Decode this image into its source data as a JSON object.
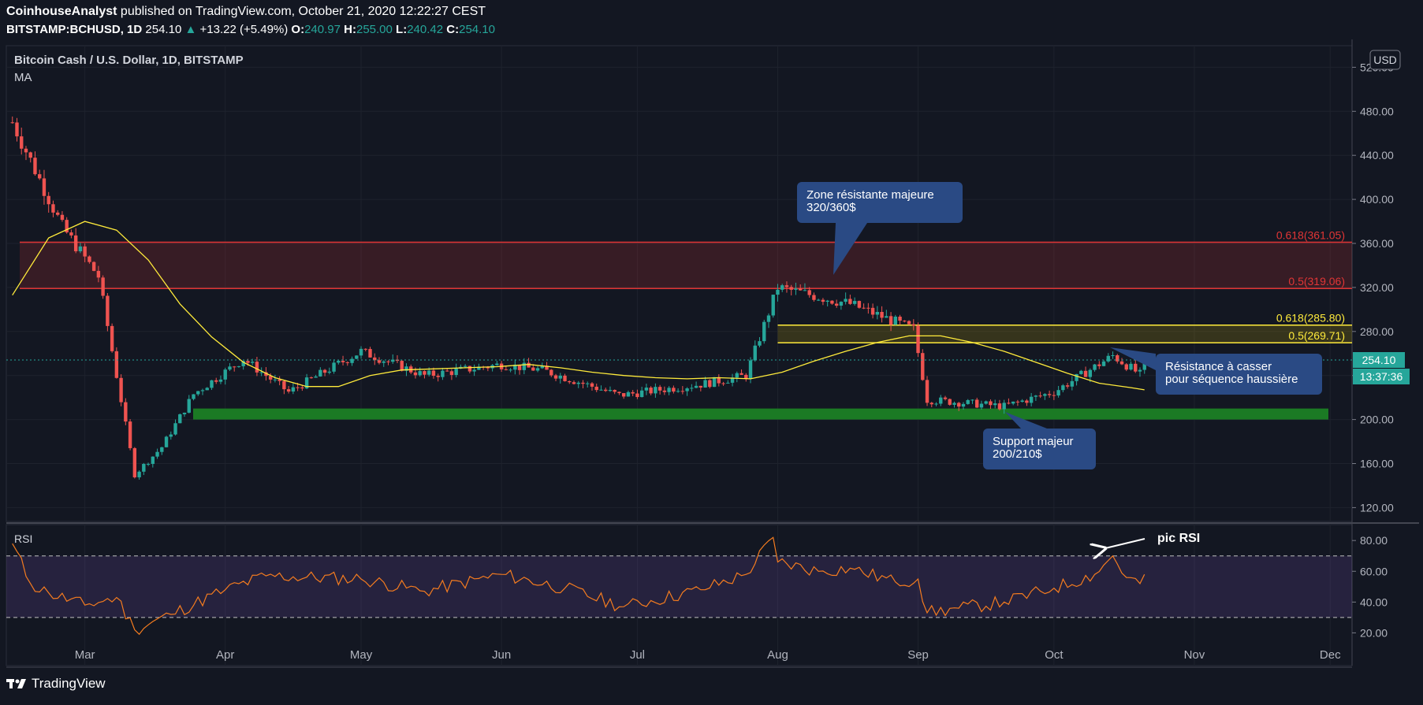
{
  "header": {
    "author": "CoinhouseAnalyst",
    "published": " published on TradingView.com, October 21, 2020 12:22:27 CEST",
    "symbol": "BITSTAMP:BCHUSD, 1D",
    "last": "254.10",
    "change": "+13.22 (+5.49%)",
    "o_label": "O:",
    "o": "240.97",
    "h_label": "H:",
    "h": "255.00",
    "l_label": "L:",
    "l": "240.42",
    "c_label": "C:",
    "c": "254.10"
  },
  "pane": {
    "title": "Bitcoin Cash / U.S. Dollar, 1D, BITSTAMP",
    "indicator": "MA",
    "currency": "USD",
    "price_tag": "254.10",
    "countdown": "13:37:36",
    "rsi_label": "RSI"
  },
  "annotations": {
    "zone": "Zone résistante majeure\n320/360$",
    "support": "Support majeur\n200/210$",
    "resistance": "Résistance à casser\npour séquence haussière",
    "rsi_peak": "pic RSI"
  },
  "fib_labels": [
    {
      "text": "0.618(361.05)",
      "price": 361.05,
      "color": "#e03535"
    },
    {
      "text": "0.5(319.06)",
      "price": 319.06,
      "color": "#e03535"
    },
    {
      "text": "0.618(285.80)",
      "price": 285.8,
      "color": "#ffeb3b"
    },
    {
      "text": "0.5(269.71)",
      "price": 269.71,
      "color": "#ffeb3b"
    }
  ],
  "footer": {
    "brand": "TradingView"
  },
  "colors": {
    "up": "#26a69a",
    "down": "#ef5350",
    "ma": "#ffeb3b",
    "rsi": "#f57c1f",
    "resistance_zone": "#e03535",
    "support_zone": "#1b7a24",
    "annotation_bg": "#2a4a84"
  },
  "chart_data": [
    {
      "type": "candlestick",
      "title": "Bitcoin Cash / U.S. Dollar, 1D, BITSTAMP",
      "ylim": [
        100,
        530
      ],
      "yticks": [
        120,
        160,
        200,
        240,
        280,
        320,
        360,
        400,
        440,
        480,
        520
      ],
      "ytick_labels": [
        "120.00",
        "160.00",
        "200.00",
        "",
        "280.00",
        "320.00",
        "360.00",
        "400.00",
        "440.00",
        "480.00",
        "520.00"
      ],
      "xticks": [
        "Mar",
        "Apr",
        "May",
        "Jun",
        "Jul",
        "Aug",
        "Sep",
        "Oct",
        "Nov",
        "Dec"
      ],
      "series": [
        {
          "name": "MA",
          "x": [
            "2020-02-14",
            "2020-02-22",
            "2020-03-01",
            "2020-03-08",
            "2020-03-15",
            "2020-03-22",
            "2020-03-29",
            "2020-04-05",
            "2020-04-12",
            "2020-04-19",
            "2020-04-26",
            "2020-05-03",
            "2020-05-10",
            "2020-05-17",
            "2020-05-24",
            "2020-05-31",
            "2020-06-07",
            "2020-06-14",
            "2020-06-21",
            "2020-06-28",
            "2020-07-05",
            "2020-07-12",
            "2020-07-19",
            "2020-07-26",
            "2020-08-02",
            "2020-08-09",
            "2020-08-16",
            "2020-08-23",
            "2020-08-30",
            "2020-09-06",
            "2020-09-13",
            "2020-09-20",
            "2020-09-27",
            "2020-10-04",
            "2020-10-11",
            "2020-10-18",
            "2020-10-21"
          ],
          "values": [
            313,
            365,
            380,
            372,
            345,
            305,
            275,
            252,
            238,
            230,
            230,
            240,
            245,
            246,
            247,
            248,
            250,
            247,
            243,
            240,
            238,
            237,
            238,
            237,
            243,
            253,
            262,
            270,
            276,
            276,
            270,
            262,
            252,
            242,
            233,
            229,
            227
          ]
        }
      ],
      "candles_summary": [
        {
          "date": "2020-02-14",
          "close": 470
        },
        {
          "date": "2020-02-25",
          "close": 375
        },
        {
          "date": "2020-03-04",
          "close": 330
        },
        {
          "date": "2020-03-12",
          "close": 150
        },
        {
          "date": "2020-03-18",
          "close": 175
        },
        {
          "date": "2020-03-25",
          "close": 223
        },
        {
          "date": "2020-04-05",
          "close": 255
        },
        {
          "date": "2020-04-15",
          "close": 225
        },
        {
          "date": "2020-05-01",
          "close": 262
        },
        {
          "date": "2020-05-15",
          "close": 240
        },
        {
          "date": "2020-06-01",
          "close": 250
        },
        {
          "date": "2020-06-10",
          "close": 245
        },
        {
          "date": "2020-06-27",
          "close": 222
        },
        {
          "date": "2020-07-15",
          "close": 232
        },
        {
          "date": "2020-07-25",
          "close": 240
        },
        {
          "date": "2020-08-01",
          "close": 320
        },
        {
          "date": "2020-08-17",
          "close": 305
        },
        {
          "date": "2020-08-31",
          "close": 282
        },
        {
          "date": "2020-09-03",
          "close": 218
        },
        {
          "date": "2020-09-20",
          "close": 212
        },
        {
          "date": "2020-10-01",
          "close": 225
        },
        {
          "date": "2020-10-14",
          "close": 258
        },
        {
          "date": "2020-10-20",
          "close": 241
        },
        {
          "date": "2020-10-21",
          "close": 254.1
        }
      ],
      "zones": [
        {
          "name": "Zone résistante majeure",
          "from": 319.06,
          "to": 361.05
        },
        {
          "name": "Support majeur",
          "from": 200,
          "to": 210
        }
      ]
    },
    {
      "type": "line",
      "title": "RSI",
      "ylim": [
        15,
        90
      ],
      "yticks": [
        20,
        40,
        60,
        80
      ],
      "ytick_labels": [
        "20.00",
        "40.00",
        "60.00",
        "80.00"
      ],
      "levels": [
        30,
        70
      ],
      "series": [
        {
          "name": "RSI",
          "x": [
            "2020-02-14",
            "2020-02-18",
            "2020-02-22",
            "2020-03-01",
            "2020-03-08",
            "2020-03-12",
            "2020-03-20",
            "2020-04-01",
            "2020-04-10",
            "2020-05-01",
            "2020-05-15",
            "2020-06-01",
            "2020-06-15",
            "2020-06-28",
            "2020-07-15",
            "2020-07-25",
            "2020-07-31",
            "2020-08-01",
            "2020-08-10",
            "2020-08-17",
            "2020-08-27",
            "2020-09-01",
            "2020-09-03",
            "2020-09-10",
            "2020-09-20",
            "2020-10-01",
            "2020-10-10",
            "2020-10-14",
            "2020-10-17",
            "2020-10-20",
            "2020-10-21"
          ],
          "values": [
            78,
            52,
            46,
            38,
            43,
            22,
            32,
            48,
            57,
            55,
            47,
            58,
            49,
            37,
            48,
            58,
            82,
            66,
            60,
            62,
            53,
            55,
            33,
            36,
            40,
            49,
            58,
            70,
            56,
            52,
            58
          ]
        }
      ]
    }
  ]
}
